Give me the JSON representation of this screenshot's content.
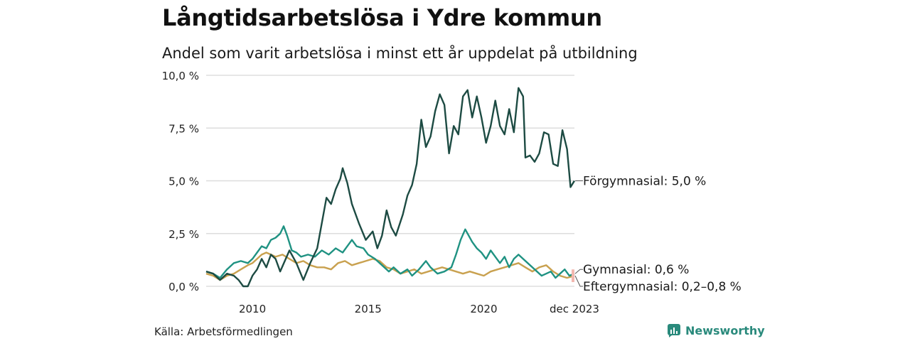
{
  "header": {
    "title": "Långtidsarbetslösa i Ydre kommun",
    "subtitle": "Andel som varit arbetslösa i minst ett år uppdelat på utbildning"
  },
  "footer": {
    "source": "Källa: Arbetsförmedlingen",
    "brand": "Newsworthy"
  },
  "colors": {
    "forgymnasial": "#1d4b43",
    "gymnasial": "#1f9282",
    "eftergymnasial": "#c9a14f",
    "grid": "#dddddd",
    "brand": "#2a8a7c",
    "range_marker": "#f2b8b0"
  },
  "chart_data": {
    "type": "line",
    "title": "Långtidsarbetslösa i Ydre kommun",
    "subtitle": "Andel som varit arbetslösa i minst ett år uppdelat på utbildning",
    "xlabel": "",
    "ylabel": "",
    "xlim": [
      2008.0,
      2023.92
    ],
    "ylim": [
      0,
      10
    ],
    "yticks": [
      0,
      2.5,
      5,
      7.5,
      10
    ],
    "ytick_labels": [
      "0,0 %",
      "2,5 %",
      "5,0 %",
      "7,5 %",
      "10,0 %"
    ],
    "xticks": [
      2010,
      2015,
      2020,
      2023.92
    ],
    "xtick_labels": [
      "2010",
      "2015",
      "2020",
      "dec 2023"
    ],
    "grid": true,
    "series": [
      {
        "name": "Förgymnasial",
        "end_label": "Förgymnasial: 5,0 %",
        "color_key": "forgymnasial",
        "points": [
          [
            2008.0,
            0.7
          ],
          [
            2008.3,
            0.6
          ],
          [
            2008.6,
            0.3
          ],
          [
            2008.9,
            0.6
          ],
          [
            2009.2,
            0.5
          ],
          [
            2009.4,
            0.3
          ],
          [
            2009.6,
            0.0
          ],
          [
            2009.8,
            0.0
          ],
          [
            2010.0,
            0.5
          ],
          [
            2010.2,
            0.8
          ],
          [
            2010.4,
            1.3
          ],
          [
            2010.6,
            0.9
          ],
          [
            2010.8,
            1.5
          ],
          [
            2011.0,
            1.3
          ],
          [
            2011.2,
            0.7
          ],
          [
            2011.4,
            1.2
          ],
          [
            2011.6,
            1.7
          ],
          [
            2011.9,
            1.1
          ],
          [
            2012.2,
            0.3
          ],
          [
            2012.5,
            1.1
          ],
          [
            2012.8,
            1.8
          ],
          [
            2013.0,
            3.0
          ],
          [
            2013.2,
            4.2
          ],
          [
            2013.4,
            3.9
          ],
          [
            2013.6,
            4.6
          ],
          [
            2013.8,
            5.1
          ],
          [
            2013.9,
            5.6
          ],
          [
            2014.1,
            4.9
          ],
          [
            2014.3,
            3.9
          ],
          [
            2014.6,
            3.0
          ],
          [
            2014.9,
            2.2
          ],
          [
            2015.2,
            2.6
          ],
          [
            2015.4,
            1.8
          ],
          [
            2015.6,
            2.4
          ],
          [
            2015.8,
            3.6
          ],
          [
            2016.0,
            2.8
          ],
          [
            2016.2,
            2.4
          ],
          [
            2016.5,
            3.4
          ],
          [
            2016.7,
            4.3
          ],
          [
            2016.9,
            4.8
          ],
          [
            2017.1,
            5.8
          ],
          [
            2017.3,
            7.9
          ],
          [
            2017.5,
            6.6
          ],
          [
            2017.7,
            7.1
          ],
          [
            2017.9,
            8.3
          ],
          [
            2018.1,
            9.1
          ],
          [
            2018.3,
            8.6
          ],
          [
            2018.5,
            6.3
          ],
          [
            2018.7,
            7.6
          ],
          [
            2018.9,
            7.2
          ],
          [
            2019.1,
            9.0
          ],
          [
            2019.3,
            9.3
          ],
          [
            2019.5,
            8.0
          ],
          [
            2019.7,
            9.0
          ],
          [
            2019.9,
            8.0
          ],
          [
            2020.1,
            6.8
          ],
          [
            2020.3,
            7.6
          ],
          [
            2020.5,
            8.8
          ],
          [
            2020.7,
            7.6
          ],
          [
            2020.9,
            7.2
          ],
          [
            2021.1,
            8.4
          ],
          [
            2021.3,
            7.3
          ],
          [
            2021.5,
            9.4
          ],
          [
            2021.7,
            9.0
          ],
          [
            2021.8,
            6.1
          ],
          [
            2022.0,
            6.2
          ],
          [
            2022.2,
            5.9
          ],
          [
            2022.4,
            6.3
          ],
          [
            2022.6,
            7.3
          ],
          [
            2022.8,
            7.2
          ],
          [
            2023.0,
            5.8
          ],
          [
            2023.2,
            5.7
          ],
          [
            2023.4,
            7.4
          ],
          [
            2023.6,
            6.5
          ],
          [
            2023.75,
            4.7
          ],
          [
            2023.92,
            5.0
          ]
        ]
      },
      {
        "name": "Gymnasial",
        "end_label": "Gymnasial: 0,6 %",
        "color_key": "gymnasial",
        "points": [
          [
            2008.0,
            0.7
          ],
          [
            2008.3,
            0.6
          ],
          [
            2008.6,
            0.4
          ],
          [
            2008.9,
            0.8
          ],
          [
            2009.2,
            1.1
          ],
          [
            2009.5,
            1.2
          ],
          [
            2009.8,
            1.1
          ],
          [
            2010.0,
            1.3
          ],
          [
            2010.2,
            1.6
          ],
          [
            2010.4,
            1.9
          ],
          [
            2010.6,
            1.8
          ],
          [
            2010.8,
            2.2
          ],
          [
            2011.0,
            2.3
          ],
          [
            2011.2,
            2.5
          ],
          [
            2011.35,
            2.85
          ],
          [
            2011.5,
            2.4
          ],
          [
            2011.7,
            1.7
          ],
          [
            2011.9,
            1.6
          ],
          [
            2012.1,
            1.4
          ],
          [
            2012.4,
            1.5
          ],
          [
            2012.7,
            1.4
          ],
          [
            2013.0,
            1.7
          ],
          [
            2013.3,
            1.5
          ],
          [
            2013.6,
            1.8
          ],
          [
            2013.9,
            1.6
          ],
          [
            2014.1,
            1.9
          ],
          [
            2014.3,
            2.2
          ],
          [
            2014.5,
            1.9
          ],
          [
            2014.8,
            1.8
          ],
          [
            2015.0,
            1.5
          ],
          [
            2015.3,
            1.3
          ],
          [
            2015.6,
            1.0
          ],
          [
            2015.9,
            0.7
          ],
          [
            2016.1,
            0.9
          ],
          [
            2016.4,
            0.6
          ],
          [
            2016.7,
            0.8
          ],
          [
            2016.9,
            0.5
          ],
          [
            2017.2,
            0.8
          ],
          [
            2017.5,
            1.2
          ],
          [
            2017.7,
            0.9
          ],
          [
            2018.0,
            0.6
          ],
          [
            2018.3,
            0.7
          ],
          [
            2018.6,
            0.9
          ],
          [
            2018.8,
            1.5
          ],
          [
            2019.0,
            2.2
          ],
          [
            2019.2,
            2.7
          ],
          [
            2019.35,
            2.4
          ],
          [
            2019.5,
            2.1
          ],
          [
            2019.7,
            1.8
          ],
          [
            2019.9,
            1.6
          ],
          [
            2020.1,
            1.3
          ],
          [
            2020.3,
            1.7
          ],
          [
            2020.5,
            1.4
          ],
          [
            2020.7,
            1.1
          ],
          [
            2020.9,
            1.4
          ],
          [
            2021.1,
            0.9
          ],
          [
            2021.3,
            1.3
          ],
          [
            2021.5,
            1.5
          ],
          [
            2021.7,
            1.3
          ],
          [
            2021.9,
            1.1
          ],
          [
            2022.1,
            0.9
          ],
          [
            2022.3,
            0.7
          ],
          [
            2022.5,
            0.5
          ],
          [
            2022.7,
            0.6
          ],
          [
            2022.9,
            0.7
          ],
          [
            2023.1,
            0.4
          ],
          [
            2023.3,
            0.6
          ],
          [
            2023.5,
            0.8
          ],
          [
            2023.7,
            0.5
          ],
          [
            2023.92,
            0.6
          ]
        ]
      },
      {
        "name": "Eftergymnasial",
        "end_label": "Eftergymnasial: 0,2–0,8 %",
        "color_key": "eftergymnasial",
        "points": [
          [
            2008.0,
            0.6
          ],
          [
            2008.3,
            0.5
          ],
          [
            2008.6,
            0.3
          ],
          [
            2008.9,
            0.5
          ],
          [
            2009.2,
            0.6
          ],
          [
            2009.5,
            0.8
          ],
          [
            2009.8,
            1.0
          ],
          [
            2010.0,
            1.1
          ],
          [
            2010.2,
            1.3
          ],
          [
            2010.4,
            1.5
          ],
          [
            2010.6,
            1.6
          ],
          [
            2010.8,
            1.5
          ],
          [
            2011.0,
            1.4
          ],
          [
            2011.3,
            1.5
          ],
          [
            2011.6,
            1.3
          ],
          [
            2011.9,
            1.1
          ],
          [
            2012.2,
            1.2
          ],
          [
            2012.5,
            1.0
          ],
          [
            2012.8,
            0.9
          ],
          [
            2013.1,
            0.9
          ],
          [
            2013.4,
            0.8
          ],
          [
            2013.7,
            1.1
          ],
          [
            2014.0,
            1.2
          ],
          [
            2014.3,
            1.0
          ],
          [
            2014.6,
            1.1
          ],
          [
            2014.9,
            1.2
          ],
          [
            2015.2,
            1.3
          ],
          [
            2015.5,
            1.2
          ],
          [
            2015.8,
            0.9
          ],
          [
            2016.1,
            0.8
          ],
          [
            2016.4,
            0.6
          ],
          [
            2016.7,
            0.7
          ],
          [
            2017.0,
            0.8
          ],
          [
            2017.3,
            0.6
          ],
          [
            2017.6,
            0.7
          ],
          [
            2017.9,
            0.8
          ],
          [
            2018.2,
            0.9
          ],
          [
            2018.5,
            0.8
          ],
          [
            2018.8,
            0.7
          ],
          [
            2019.1,
            0.6
          ],
          [
            2019.4,
            0.7
          ],
          [
            2019.7,
            0.6
          ],
          [
            2020.0,
            0.5
          ],
          [
            2020.3,
            0.7
          ],
          [
            2020.6,
            0.8
          ],
          [
            2020.9,
            0.9
          ],
          [
            2021.2,
            1.0
          ],
          [
            2021.5,
            1.1
          ],
          [
            2021.8,
            0.9
          ],
          [
            2022.1,
            0.7
          ],
          [
            2022.4,
            0.9
          ],
          [
            2022.7,
            1.0
          ],
          [
            2023.0,
            0.7
          ],
          [
            2023.3,
            0.5
          ],
          [
            2023.6,
            0.4
          ],
          [
            2023.92,
            0.5
          ]
        ],
        "range_end": [
          0.2,
          0.8
        ]
      }
    ]
  }
}
